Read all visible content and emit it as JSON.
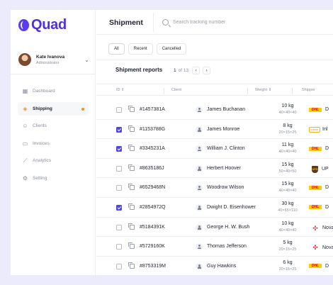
{
  "app": {
    "logo_text": "Quad"
  },
  "user": {
    "name": "Kate Ivanova",
    "role": "Administrator"
  },
  "nav": [
    {
      "label": "Dashboard",
      "icon": "grid-icon",
      "active": false
    },
    {
      "label": "Shipping",
      "icon": "box-icon",
      "active": true
    },
    {
      "label": "Clients",
      "icon": "users-icon",
      "active": false
    },
    {
      "label": "Invoices",
      "icon": "file-icon",
      "active": false
    },
    {
      "label": "Analytics",
      "icon": "chart-icon",
      "active": false
    },
    {
      "label": "Setting",
      "icon": "gear-icon",
      "active": false
    }
  ],
  "header": {
    "title": "Shipment",
    "search_placeholder": "Search tracking number"
  },
  "filters": [
    {
      "label": "All",
      "active": true
    },
    {
      "label": "Recent",
      "active": false
    },
    {
      "label": "Cancelled",
      "active": false
    }
  ],
  "reports": {
    "title": "Shipment reports",
    "page_current": "1",
    "page_total": "of 13"
  },
  "table": {
    "headers": {
      "id": "ID",
      "client": "Client",
      "weight": "Weight",
      "shipper": "Shipper"
    },
    "rows": [
      {
        "checked": false,
        "id": "#1457381A",
        "client": "James Buchanan",
        "weight": "10 kg",
        "dims": "40×40×40",
        "carrier": "dhl",
        "carrier_name": "D"
      },
      {
        "checked": true,
        "id": "#1153788G",
        "client": "James Monroe",
        "weight": "8 kg",
        "dims": "20×15×25",
        "carrier": "intime",
        "carrier_name": "Inl"
      },
      {
        "checked": true,
        "id": "#3345231A",
        "client": "William J. Clinton",
        "weight": "11 kg",
        "dims": "40×40×40",
        "carrier": "dhl",
        "carrier_name": "D"
      },
      {
        "checked": false,
        "id": "#8635186J",
        "client": "Herbert Hoover",
        "weight": "15 kg",
        "dims": "50×40×50",
        "carrier": "ups",
        "carrier_name": "UP"
      },
      {
        "checked": false,
        "id": "#6529468N",
        "client": "Woodrow Wilson",
        "weight": "15 kg",
        "dims": "40×40×40",
        "carrier": "dhl",
        "carrier_name": "D"
      },
      {
        "checked": true,
        "id": "#2854972Q",
        "client": "Dwight D. Eisenhower",
        "weight": "30 kg",
        "dims": "40×65×110",
        "carrier": "dhl",
        "carrier_name": "D"
      },
      {
        "checked": false,
        "id": "#5184391K",
        "client": "George H. W. Bush",
        "weight": "10 kg",
        "dims": "40×40×40",
        "carrier": "nova",
        "carrier_name": "Nova"
      },
      {
        "checked": false,
        "id": "#5729160K",
        "client": "Thomas Jefferson",
        "weight": "5 kg",
        "dims": "20×15×25",
        "carrier": "nova",
        "carrier_name": "Nova"
      },
      {
        "checked": false,
        "id": "#8753319M",
        "client": "Guy Hawkins",
        "weight": "6 kg",
        "dims": "20×15×25",
        "carrier": "dhl",
        "carrier_name": "D"
      }
    ]
  },
  "carrier_logos": {
    "dhl": "DHL",
    "ups": "UPS",
    "nova": "✣",
    "intime": "intime"
  },
  "colors": {
    "brand": "#4f30e0",
    "accent": "#f0902c",
    "checkbox": "#4f46e5",
    "dhl_yellow": "#ffcc00",
    "dhl_red": "#d40511"
  }
}
